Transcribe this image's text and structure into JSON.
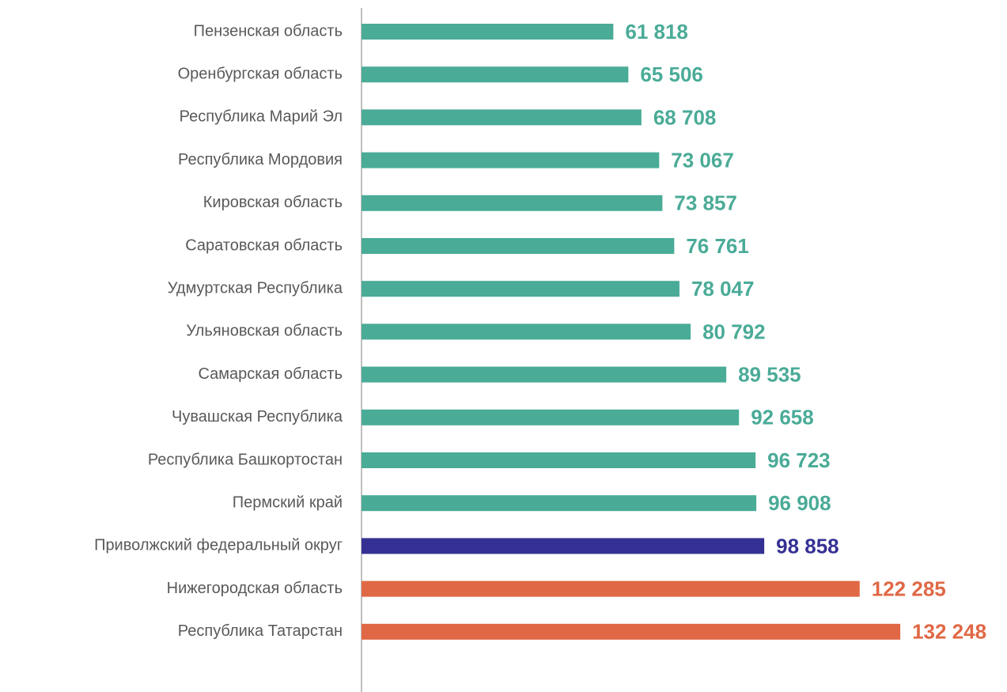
{
  "chart_data": {
    "type": "bar",
    "orientation": "horizontal",
    "categories": [
      "Пензенская область",
      "Оренбургская область",
      "Республика Марий Эл",
      "Республика Мордовия",
      "Кировская область",
      "Саратовская область",
      "Удмуртская Республика",
      "Ульяновская область",
      "Самарская область",
      "Чувашская Республика",
      "Республика Башкортостан",
      "Пермский край",
      "Приволжский федеральный округ",
      "Нижегородская область",
      "Республика Татарстан"
    ],
    "values": [
      61818,
      65506,
      68708,
      73067,
      73857,
      76761,
      78047,
      80792,
      89535,
      92658,
      96723,
      96908,
      98858,
      122285,
      132248
    ],
    "value_labels": [
      "61 818",
      "65 506",
      "68 708",
      "73 067",
      "73 857",
      "76 761",
      "78 047",
      "80 792",
      "89 535",
      "92 658",
      "96 723",
      "96 908",
      "98 858",
      "122 285",
      "132 248"
    ],
    "colors": [
      "#4aab97",
      "#4aab97",
      "#4aab97",
      "#4aab97",
      "#4aab97",
      "#4aab97",
      "#4aab97",
      "#4aab97",
      "#4aab97",
      "#4aab97",
      "#4aab97",
      "#4aab97",
      "#353194",
      "#e06845",
      "#e06845"
    ],
    "xlim": [
      0,
      140000
    ]
  }
}
